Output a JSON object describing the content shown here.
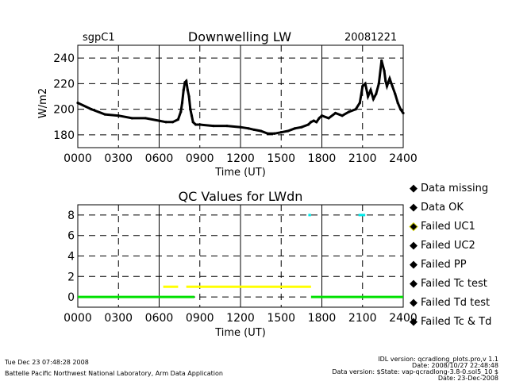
{
  "header": {
    "site": "sgpC1",
    "title": "Downwelling LW",
    "date": "20081221"
  },
  "footer": {
    "timestamp": "Tue Dec 23 07:48:28 2008",
    "lab": "Battelle Pacific Northwest National Laboratory, Arm Data Application",
    "idl_version": "IDL version: qcradlong_plots.pro,v 1.1",
    "idl_date": "Date: 2008/10/27 22:48:48",
    "data_version": "Data version: $State: vap-qcradlong-3.8-0.sol5_10 $",
    "data_date": "Date: 23-Dec-2008"
  },
  "chart_data": [
    {
      "type": "line",
      "title": "Downwelling LW",
      "xlabel": "Time (UT)",
      "ylabel": "W/m2",
      "xlim": [
        0,
        2400
      ],
      "ylim": [
        170,
        250
      ],
      "xticks": [
        "0000",
        "0300",
        "0600",
        "0900",
        "1200",
        "1500",
        "1800",
        "2100",
        "2400"
      ],
      "yticks": [
        "180",
        "200",
        "220",
        "240"
      ],
      "grid": true,
      "series": [
        {
          "name": "LWdn",
          "x": [
            0,
            100,
            200,
            300,
            400,
            500,
            600,
            650,
            700,
            740,
            760,
            770,
            780,
            790,
            800,
            810,
            820,
            830,
            840,
            850,
            870,
            900,
            1000,
            1100,
            1200,
            1260,
            1300,
            1350,
            1400,
            1450,
            1500,
            1550,
            1600,
            1650,
            1700,
            1720,
            1740,
            1760,
            1780,
            1800,
            1850,
            1900,
            1950,
            2000,
            2050,
            2080,
            2100,
            2120,
            2140,
            2160,
            2180,
            2200,
            2220,
            2240,
            2260,
            2270,
            2280,
            2300,
            2320,
            2340,
            2360,
            2380,
            2400
          ],
          "values": [
            205,
            200,
            196,
            195,
            193,
            193,
            191,
            190,
            190,
            192,
            198,
            205,
            215,
            221,
            222,
            215,
            210,
            200,
            195,
            190,
            188,
            188,
            187,
            187,
            186,
            185,
            184,
            183,
            181,
            181,
            182,
            183,
            185,
            186,
            188,
            190,
            191,
            190,
            193,
            195,
            193,
            197,
            195,
            198,
            200,
            205,
            218,
            220,
            210,
            215,
            208,
            212,
            220,
            238,
            230,
            222,
            218,
            224,
            218,
            212,
            205,
            200,
            197
          ]
        }
      ]
    },
    {
      "type": "scatter",
      "title": "QC Values for LWdn",
      "xlabel": "Time (UT)",
      "xlim": [
        0,
        2400
      ],
      "ylim": [
        -1,
        9
      ],
      "xticks": [
        "0000",
        "0300",
        "0600",
        "0900",
        "1200",
        "1500",
        "1800",
        "2100",
        "2400"
      ],
      "yticks": [
        "0",
        "2",
        "4",
        "6",
        "8"
      ],
      "grid": true,
      "series": [
        {
          "name": "Data OK",
          "color": "#00e000",
          "segments": [
            [
              0,
              860,
              0
            ],
            [
              1720,
              2400,
              0
            ]
          ]
        },
        {
          "name": "Failed UC1",
          "color": "#ffff00",
          "segments": [
            [
              630,
              740,
              1
            ],
            [
              800,
              1720,
              1
            ]
          ]
        },
        {
          "name": "Failed Td test",
          "color": "#00e8e8",
          "segments": [
            [
              1700,
              1720,
              8
            ],
            [
              2070,
              2120,
              8
            ]
          ]
        }
      ]
    }
  ],
  "legend": [
    {
      "label": "Data missing",
      "color": "#000000",
      "symbol": "◆"
    },
    {
      "label": "Data OK",
      "color": "#00e000",
      "symbol": "◆"
    },
    {
      "label": "Failed UC1",
      "color": "#ffff00",
      "symbol": "◆"
    },
    {
      "label": "Failed UC2",
      "color": "#ff8c00",
      "symbol": "◆"
    },
    {
      "label": "Failed PP",
      "color": "#e00000",
      "symbol": "◆"
    },
    {
      "label": "Failed Tc test",
      "color": "#e000e0",
      "symbol": "◆"
    },
    {
      "label": "Failed Td test",
      "color": "#00e8e8",
      "symbol": "◆"
    },
    {
      "label": "Failed Tc & Td",
      "color": "#0000e0",
      "symbol": "◆"
    }
  ]
}
